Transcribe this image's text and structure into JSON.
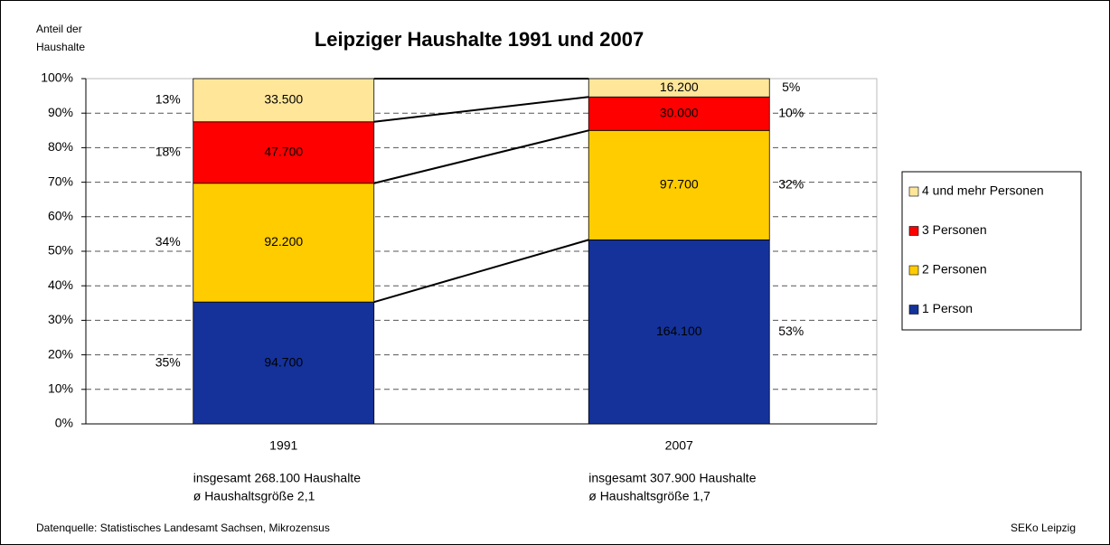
{
  "chart_data": {
    "type": "stacked_bar_100",
    "title": "Leipziger Haushalte 1991 und 2007",
    "ylabel": [
      "Anteil der",
      "Haushalte"
    ],
    "categories": [
      "1991",
      "2007"
    ],
    "annotations": [
      [
        "insgesamt 268.100 Haushalte",
        "ø Haushaltsgröße 2,1"
      ],
      [
        "insgesamt 307.900 Haushalte",
        "ø Haushaltsgröße 1,7"
      ]
    ],
    "series": [
      {
        "name": "1 Person",
        "color": "#14329a",
        "label_color": "#d0d4e8",
        "values": [
          35.3,
          53.3
        ],
        "value_labels": [
          "35%",
          "53%"
        ],
        "counts": [
          "94.700",
          "164.100"
        ]
      },
      {
        "name": "2 Personen",
        "color": "#ffcc00",
        "label_color": "#000000",
        "values": [
          34.4,
          31.7
        ],
        "value_labels": [
          "34%",
          "32%"
        ],
        "counts": [
          "92.200",
          "97.700"
        ]
      },
      {
        "name": "3 Personen",
        "color": "#ff0000",
        "label_color": "#000000",
        "values": [
          17.8,
          9.7
        ],
        "value_labels": [
          "18%",
          "10%"
        ],
        "counts": [
          "47.700",
          "30.000"
        ]
      },
      {
        "name": "4 und mehr Personen",
        "color": "#ffe699",
        "label_color": "#000000",
        "values": [
          12.5,
          5.3
        ],
        "value_labels": [
          "13%",
          "5%"
        ],
        "counts": [
          "33.500",
          "16.200"
        ]
      }
    ],
    "ylim": [
      0,
      100
    ],
    "yticks": [
      {
        "value": 0,
        "label": "0%"
      },
      {
        "value": 10,
        "label": "10%"
      },
      {
        "value": 20,
        "label": "20%"
      },
      {
        "value": 30,
        "label": "30%"
      },
      {
        "value": 40,
        "label": "40%"
      },
      {
        "value": 50,
        "label": "50%"
      },
      {
        "value": 60,
        "label": "60%"
      },
      {
        "value": 70,
        "label": "70%"
      },
      {
        "value": 80,
        "label": "80%"
      },
      {
        "value": 90,
        "label": "90%"
      },
      {
        "value": 100,
        "label": "100%"
      }
    ],
    "grid": true,
    "legend": "right",
    "source": "Datenquelle: Statistisches Landesamt Sachsen, Mikrozensus",
    "credit": "SEKo Leipzig"
  }
}
